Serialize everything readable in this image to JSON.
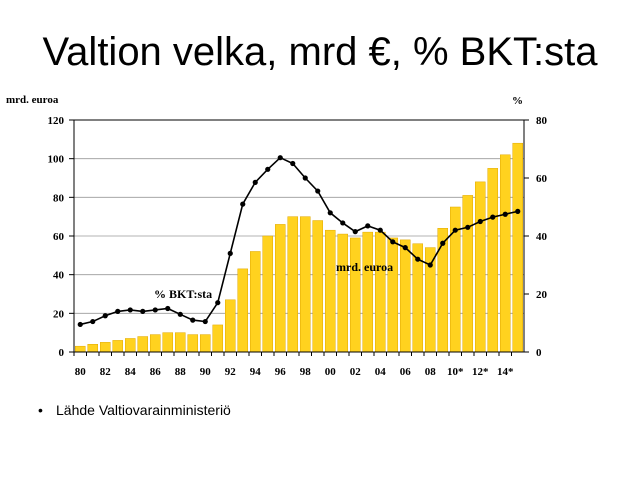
{
  "title": "Valtion velka, mrd €, % BKT:sta",
  "source": {
    "bullet": "•",
    "text": "Lähde Valtiovarainministeriö"
  },
  "colors": {
    "bar": "#FFD21F",
    "bar_edge": "#E0A800",
    "line": "#000000",
    "grid": "#9a9a9a",
    "axis": "#000000"
  },
  "chart_data": {
    "type": "bar+line",
    "left_axis": {
      "unit": "mrd. euroa",
      "ylim": [
        0,
        120
      ],
      "ticks": [
        0,
        20,
        40,
        60,
        80,
        100,
        120
      ]
    },
    "right_axis": {
      "unit": "%",
      "ylim": [
        0,
        80
      ],
      "ticks": [
        0,
        20,
        40,
        60,
        80
      ]
    },
    "x": [
      1980,
      1981,
      1982,
      1983,
      1984,
      1985,
      1986,
      1987,
      1988,
      1989,
      1990,
      1991,
      1992,
      1993,
      1994,
      1995,
      1996,
      1997,
      1998,
      1999,
      2000,
      2001,
      2002,
      2003,
      2004,
      2005,
      2006,
      2007,
      2008,
      2009,
      2010,
      2011,
      2012,
      2013,
      2014,
      2015
    ],
    "x_tick_labels": [
      {
        "year": 1980,
        "label": "80"
      },
      {
        "year": 1982,
        "label": "82"
      },
      {
        "year": 1984,
        "label": "84"
      },
      {
        "year": 1986,
        "label": "86"
      },
      {
        "year": 1988,
        "label": "88"
      },
      {
        "year": 1990,
        "label": "90"
      },
      {
        "year": 1992,
        "label": "92"
      },
      {
        "year": 1994,
        "label": "94"
      },
      {
        "year": 1996,
        "label": "96"
      },
      {
        "year": 1998,
        "label": "98"
      },
      {
        "year": 2000,
        "label": "00"
      },
      {
        "year": 2002,
        "label": "02"
      },
      {
        "year": 2004,
        "label": "04"
      },
      {
        "year": 2006,
        "label": "06"
      },
      {
        "year": 2008,
        "label": "08"
      },
      {
        "year": 2010,
        "label": "10*"
      },
      {
        "year": 2012,
        "label": "12*"
      },
      {
        "year": 2014,
        "label": "14*"
      }
    ],
    "series": [
      {
        "name": "mrd. euroa",
        "type": "bar",
        "axis": "left",
        "values": [
          3,
          4,
          5,
          6,
          7,
          8,
          9,
          10,
          10,
          9,
          9,
          14,
          27,
          43,
          52,
          60,
          66,
          70,
          70,
          68,
          63,
          61,
          59,
          62,
          62,
          59,
          58,
          56,
          54,
          64,
          75,
          81,
          88,
          95,
          102,
          108
        ]
      },
      {
        "name": "% BKT:sta",
        "type": "line",
        "axis": "right",
        "values": [
          9.5,
          10.5,
          12.5,
          14,
          14.5,
          14,
          14.5,
          15,
          13,
          11,
          10.5,
          17,
          34,
          51,
          58.5,
          63,
          67,
          65,
          60,
          55.5,
          48,
          44.5,
          41.5,
          43.5,
          42,
          38,
          36,
          32,
          30,
          37.5,
          42,
          43,
          45,
          46.5,
          47.5,
          48.5
        ]
      }
    ]
  }
}
